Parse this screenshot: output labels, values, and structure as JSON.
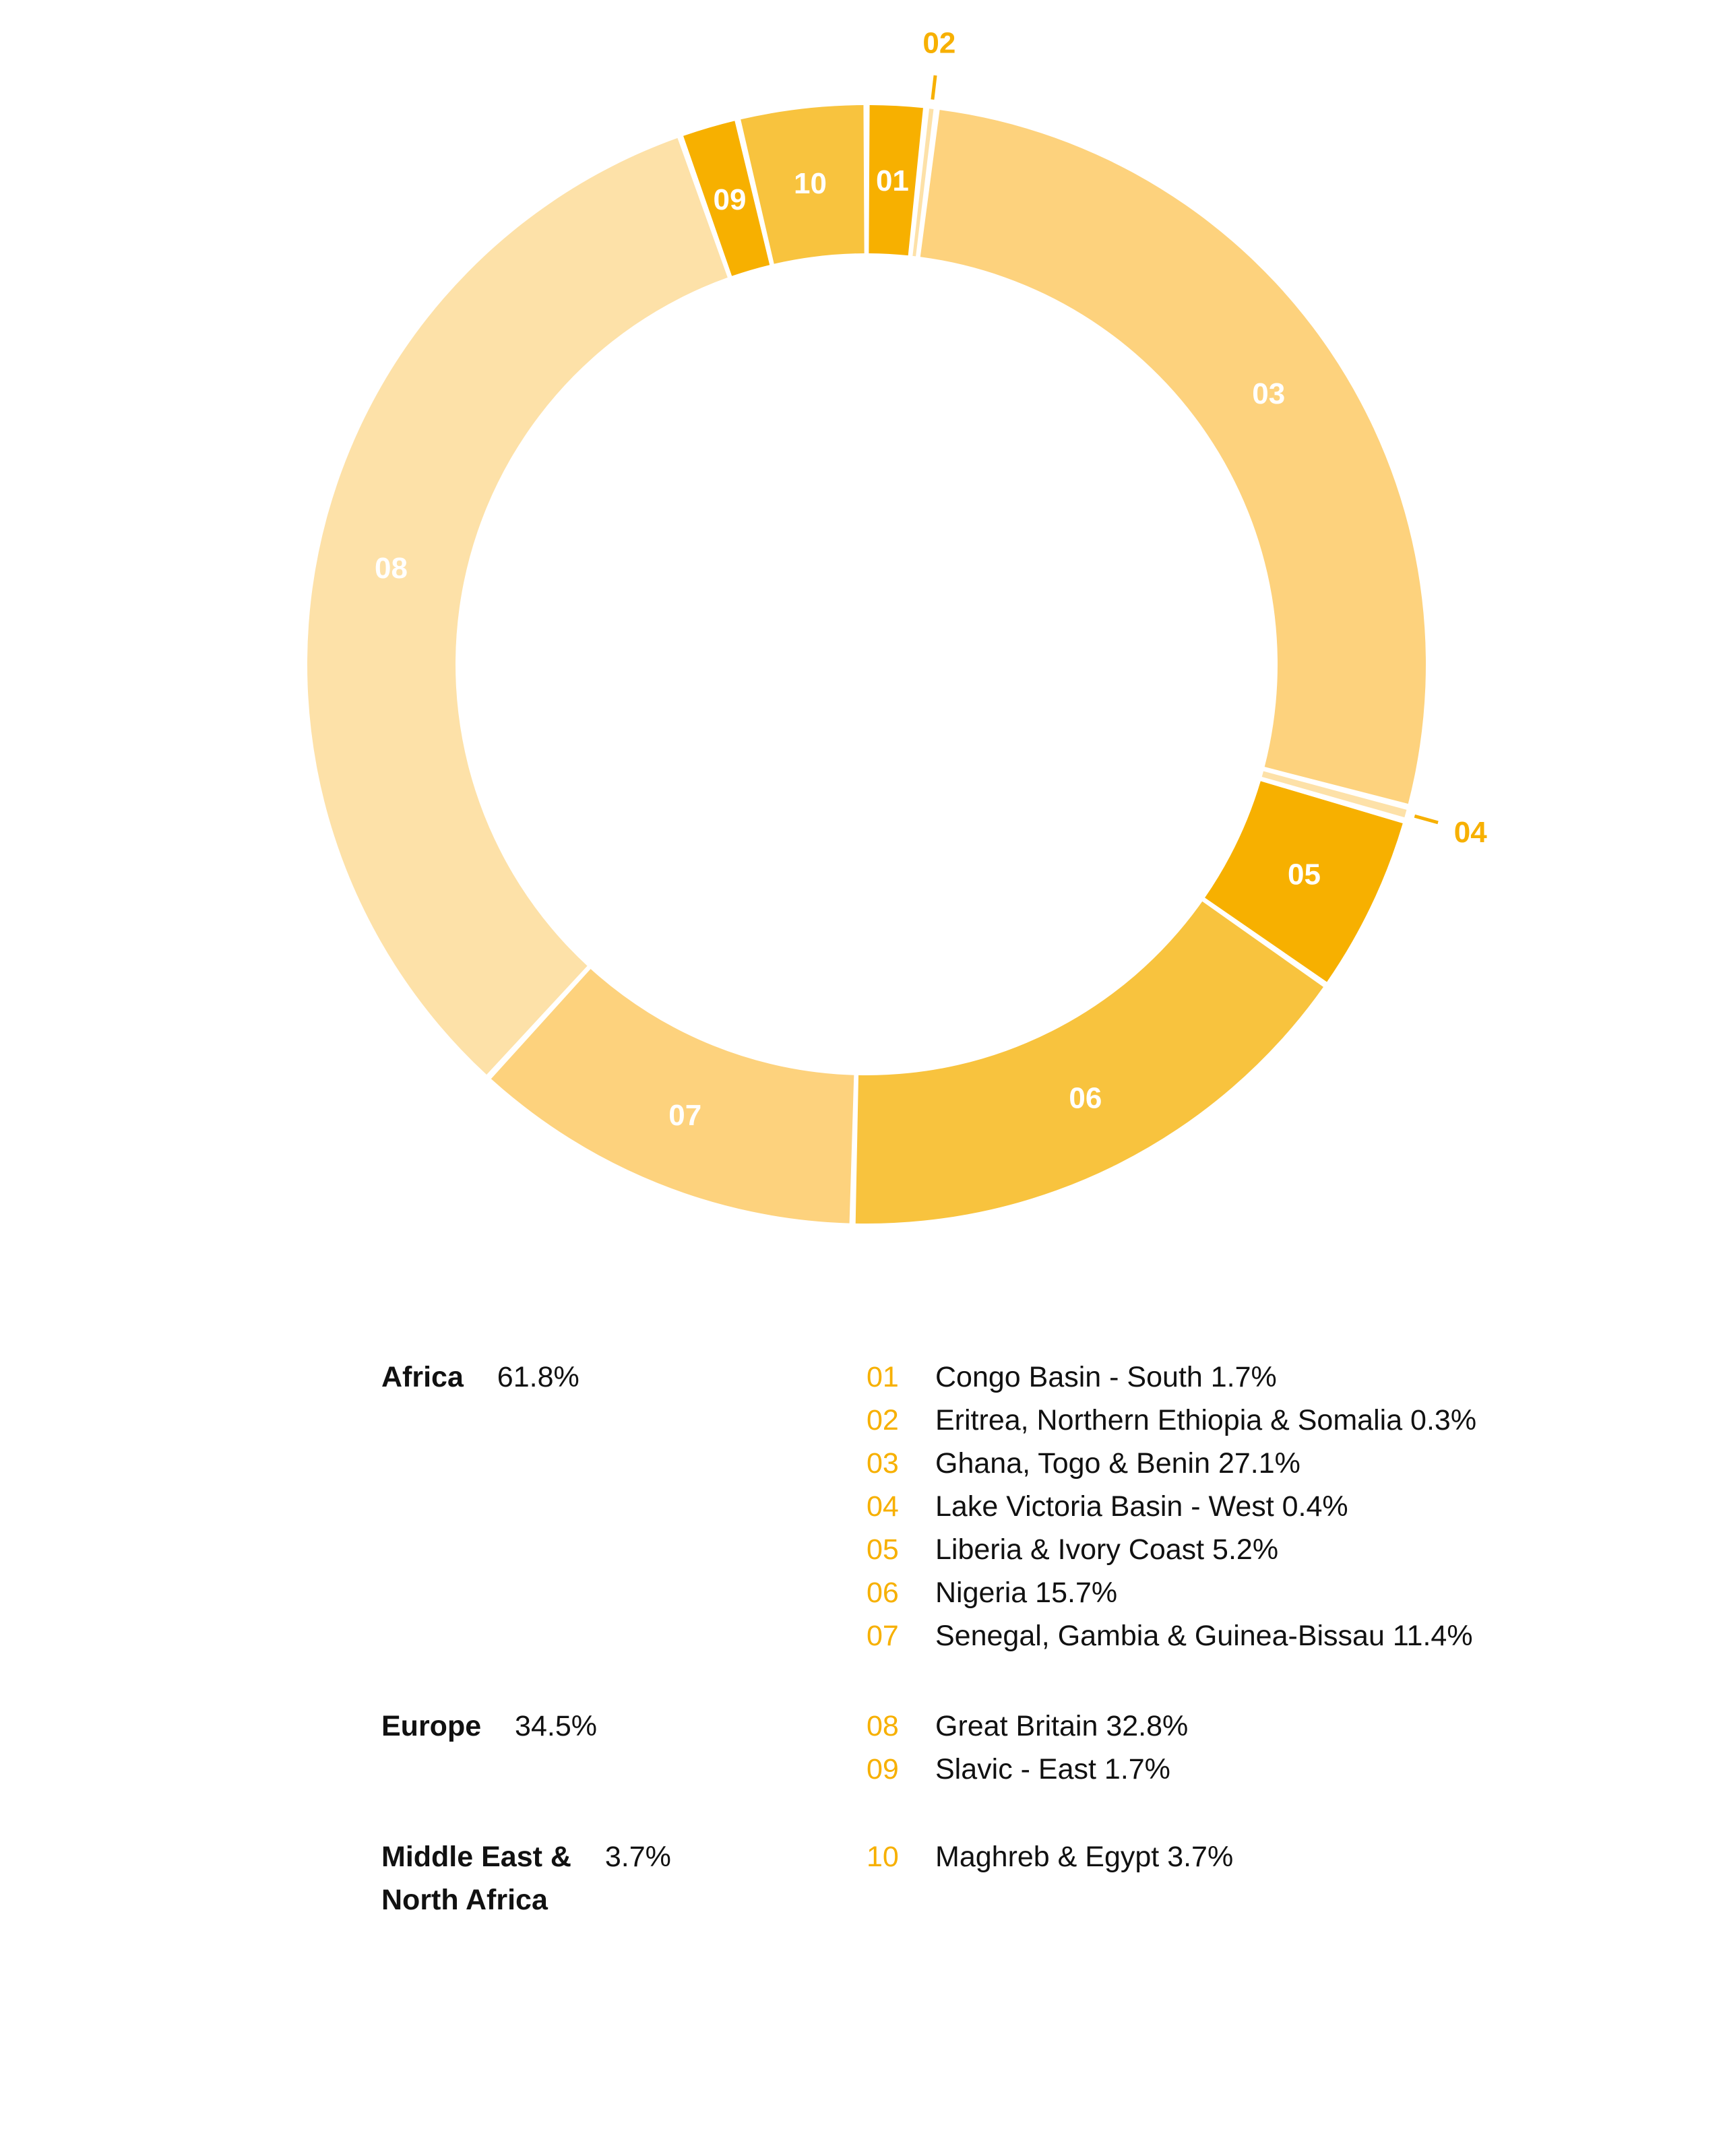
{
  "chart_data": {
    "type": "pie",
    "style": "donut",
    "slices": [
      {
        "code": "01",
        "label": "Congo Basin - South",
        "value": 1.7,
        "color": "#f7b000"
      },
      {
        "code": "02",
        "label": "Eritrea, Northern Ethiopia & Somalia",
        "value": 0.3,
        "color": "#fde1a8"
      },
      {
        "code": "03",
        "label": "Ghana, Togo & Benin",
        "value": 27.1,
        "color": "#fdd27d"
      },
      {
        "code": "04",
        "label": "Lake Victoria Basin - West",
        "value": 0.4,
        "color": "#fde1a8"
      },
      {
        "code": "05",
        "label": "Liberia & Ivory Coast",
        "value": 5.2,
        "color": "#f7b000"
      },
      {
        "code": "06",
        "label": "Nigeria",
        "value": 15.7,
        "color": "#f8c33e"
      },
      {
        "code": "07",
        "label": "Senegal, Gambia & Guinea-Bissau",
        "value": 11.4,
        "color": "#fdd27d"
      },
      {
        "code": "08",
        "label": "Great Britain",
        "value": 32.8,
        "color": "#fde1a8"
      },
      {
        "code": "09",
        "label": "Slavic - East",
        "value": 1.7,
        "color": "#f7b000"
      },
      {
        "code": "10",
        "label": "Maghreb & Egypt",
        "value": 3.7,
        "color": "#f8c33e"
      }
    ],
    "outside_labels": [
      "02",
      "04"
    ],
    "groups": [
      {
        "name": "Africa",
        "pct": "61.8%",
        "items": [
          {
            "num": "01",
            "text": "Congo Basin - South 1.7%"
          },
          {
            "num": "02",
            "text": "Eritrea, Northern Ethiopia & Somalia 0.3%"
          },
          {
            "num": "03",
            "text": "Ghana, Togo & Benin 27.1%"
          },
          {
            "num": "04",
            "text": "Lake Victoria Basin - West 0.4%"
          },
          {
            "num": "05",
            "text": "Liberia & Ivory Coast 5.2%"
          },
          {
            "num": "06",
            "text": "Nigeria 15.7%"
          },
          {
            "num": "07",
            "text": "Senegal, Gambia & Guinea-Bissau 11.4%"
          }
        ]
      },
      {
        "name": "Europe",
        "pct": "34.5%",
        "items": [
          {
            "num": "08",
            "text": "Great Britain 32.8%"
          },
          {
            "num": "09",
            "text": "Slavic - East 1.7%"
          }
        ]
      },
      {
        "name_lines": [
          "Middle East &",
          "North Africa"
        ],
        "pct": "3.7%",
        "items": [
          {
            "num": "10",
            "text": "Maghreb & Egypt 3.7%"
          }
        ]
      }
    ],
    "colors": {
      "accent": "#f7b000",
      "label_on_slice": "#ffffff"
    }
  }
}
